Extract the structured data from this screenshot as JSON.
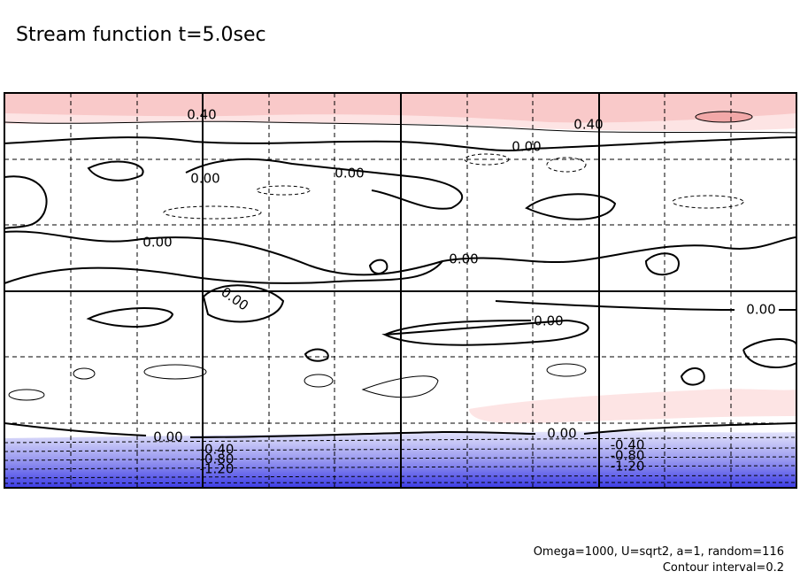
{
  "chart_data": {
    "type": "contour",
    "title": "Stream function t=5.0sec",
    "notes": [
      "Omega=1000, U=sqrt2, a=1, random=116",
      "Contour interval=0.2"
    ],
    "contour_labels": [
      {
        "value": 0.4,
        "label": "0.40"
      },
      {
        "value": 0.4,
        "label": "0.40"
      },
      {
        "value": 0,
        "label": "0.00"
      },
      {
        "value": 0,
        "label": "0.00"
      },
      {
        "value": 0,
        "label": "0.00"
      },
      {
        "value": 0,
        "label": "0.00"
      },
      {
        "value": 0,
        "label": "0.00"
      },
      {
        "value": 0,
        "label": "0.00"
      },
      {
        "value": 0,
        "label": "0.00"
      },
      {
        "value": 0,
        "label": "0.00"
      },
      {
        "value": 0,
        "label": "0.00"
      },
      {
        "value": 0,
        "label": "0.00"
      },
      {
        "value": -0.4,
        "label": "-0.40"
      },
      {
        "value": -0.8,
        "label": "-0.80"
      },
      {
        "value": -1.2,
        "label": "-1.20"
      },
      {
        "value": -0.4,
        "label": "-0.40"
      },
      {
        "value": -0.8,
        "label": "-0.80"
      },
      {
        "value": -1.2,
        "label": "-1.20"
      }
    ]
  }
}
